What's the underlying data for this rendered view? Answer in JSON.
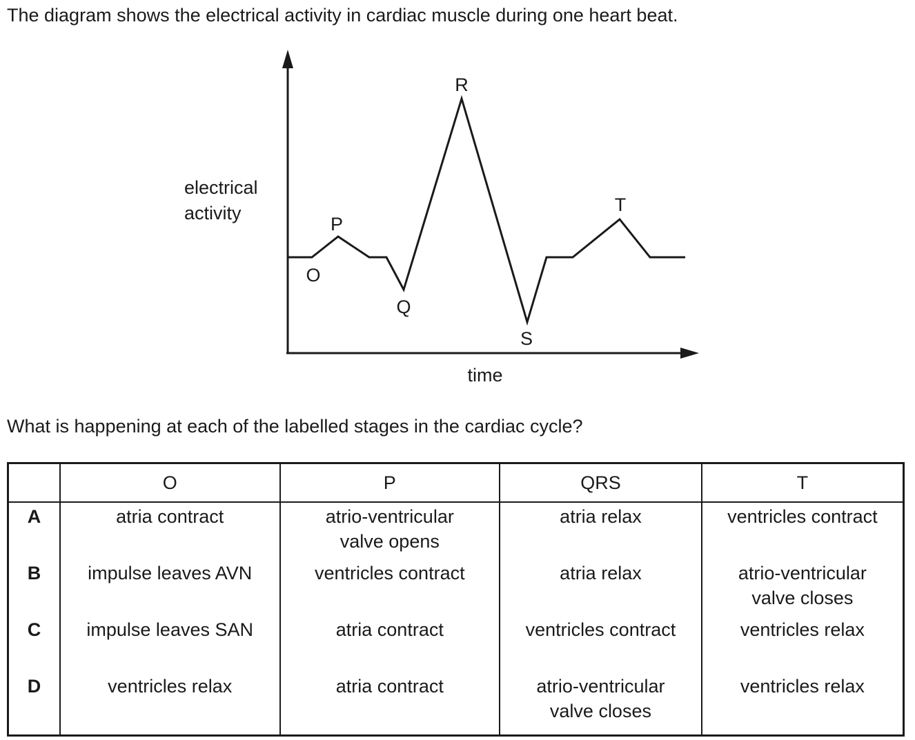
{
  "intro_text": "The diagram shows the electrical activity in cardiac muscle during one heart beat.",
  "diagram": {
    "y_axis_label_line1": "electrical",
    "y_axis_label_line2": "activity",
    "x_axis_label": "time",
    "points": {
      "O": "O",
      "P": "P",
      "Q": "Q",
      "R": "R",
      "S": "S",
      "T": "T"
    }
  },
  "question_text": "What is happening at each of the labelled stages in the cardiac cycle?",
  "table": {
    "headers": [
      "",
      "O",
      "P",
      "QRS",
      "T"
    ],
    "rows": [
      {
        "key": "A",
        "O": "atria contract",
        "P_line1": "atrio-ventricular",
        "P_line2": "valve opens",
        "QRS_line1": "atria relax",
        "QRS_line2": "",
        "T_line1": "ventricles contract",
        "T_line2": ""
      },
      {
        "key": "B",
        "O": "impulse leaves AVN",
        "P_line1": "ventricles contract",
        "P_line2": "",
        "QRS_line1": "atria relax",
        "QRS_line2": "",
        "T_line1": "atrio-ventricular",
        "T_line2": "valve closes"
      },
      {
        "key": "C",
        "O": "impulse leaves SAN",
        "P_line1": "atria contract",
        "P_line2": "",
        "QRS_line1": "ventricles contract",
        "QRS_line2": "",
        "T_line1": "ventricles relax",
        "T_line2": ""
      },
      {
        "key": "D",
        "O": "ventricles relax",
        "P_line1": "atria contract",
        "P_line2": "",
        "QRS_line1": "atrio-ventricular",
        "QRS_line2": "valve closes",
        "T_line1": "ventricles relax",
        "T_line2": ""
      }
    ]
  }
}
